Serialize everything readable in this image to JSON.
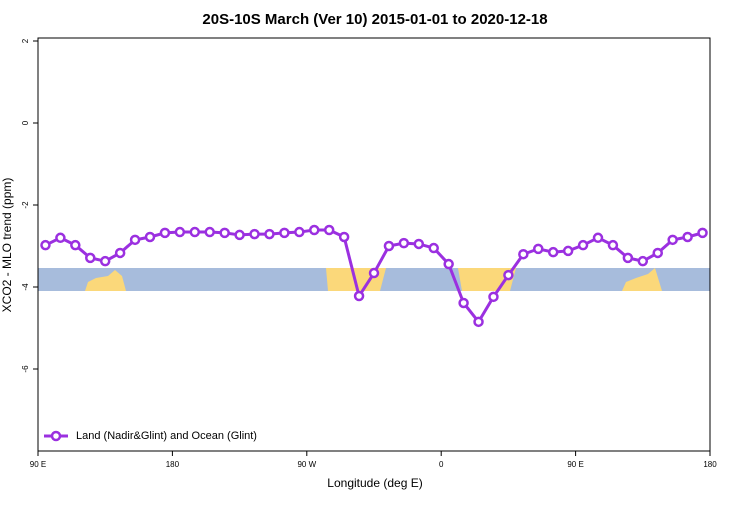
{
  "chart_data": {
    "type": "line",
    "title": "20S-10S March (Ver 10)   2015-01-01 to 2020-12-18",
    "x_label": "Longitude (deg E)",
    "y_label": "XCO2 - MLO trend (ppm)",
    "x": [
      95,
      105,
      115,
      125,
      135,
      145,
      155,
      165,
      175,
      185,
      195,
      205,
      215,
      225,
      235,
      245,
      255,
      265,
      275,
      285,
      295,
      305,
      315,
      325,
      335,
      345,
      355,
      365,
      375,
      385,
      395,
      405,
      415,
      425,
      435,
      445,
      455,
      465,
      475,
      485,
      495,
      505,
      515,
      525,
      535
    ],
    "series": [
      {
        "name": "Land (Nadir&Glint) and Ocean (Glint)",
        "color": "#9b30e0",
        "values": [
          -2.98,
          -2.8,
          -2.98,
          -3.29,
          -3.37,
          -3.17,
          -2.85,
          -2.78,
          -2.68,
          -2.66,
          -2.66,
          -2.66,
          -2.68,
          -2.73,
          -2.71,
          -2.71,
          -2.68,
          -2.66,
          -2.61,
          -2.61,
          -2.78,
          -4.22,
          -3.66,
          -3.0,
          -2.93,
          -2.95,
          -3.05,
          -3.44,
          -4.39,
          -4.85,
          -4.24,
          -3.71,
          -3.2,
          -3.07,
          -3.15,
          -3.12,
          -2.98,
          -2.8,
          -2.98,
          -3.29,
          -3.37,
          -3.17,
          -2.85,
          -2.78,
          -2.68
        ]
      }
    ],
    "xlim": [
      90,
      540
    ],
    "xticks": [
      {
        "value": 90,
        "label": "90 E"
      },
      180,
      {
        "value": 270,
        "label": "90 W"
      },
      {
        "value": 360,
        "label": "0"
      },
      {
        "value": 450,
        "label": "90 E"
      },
      {
        "value": 540,
        "label": "180"
      }
    ],
    "ylim": [
      -8,
      2
    ],
    "yticks": [
      -6,
      -4,
      -2,
      0,
      2
    ],
    "legend": "bottom-left"
  }
}
